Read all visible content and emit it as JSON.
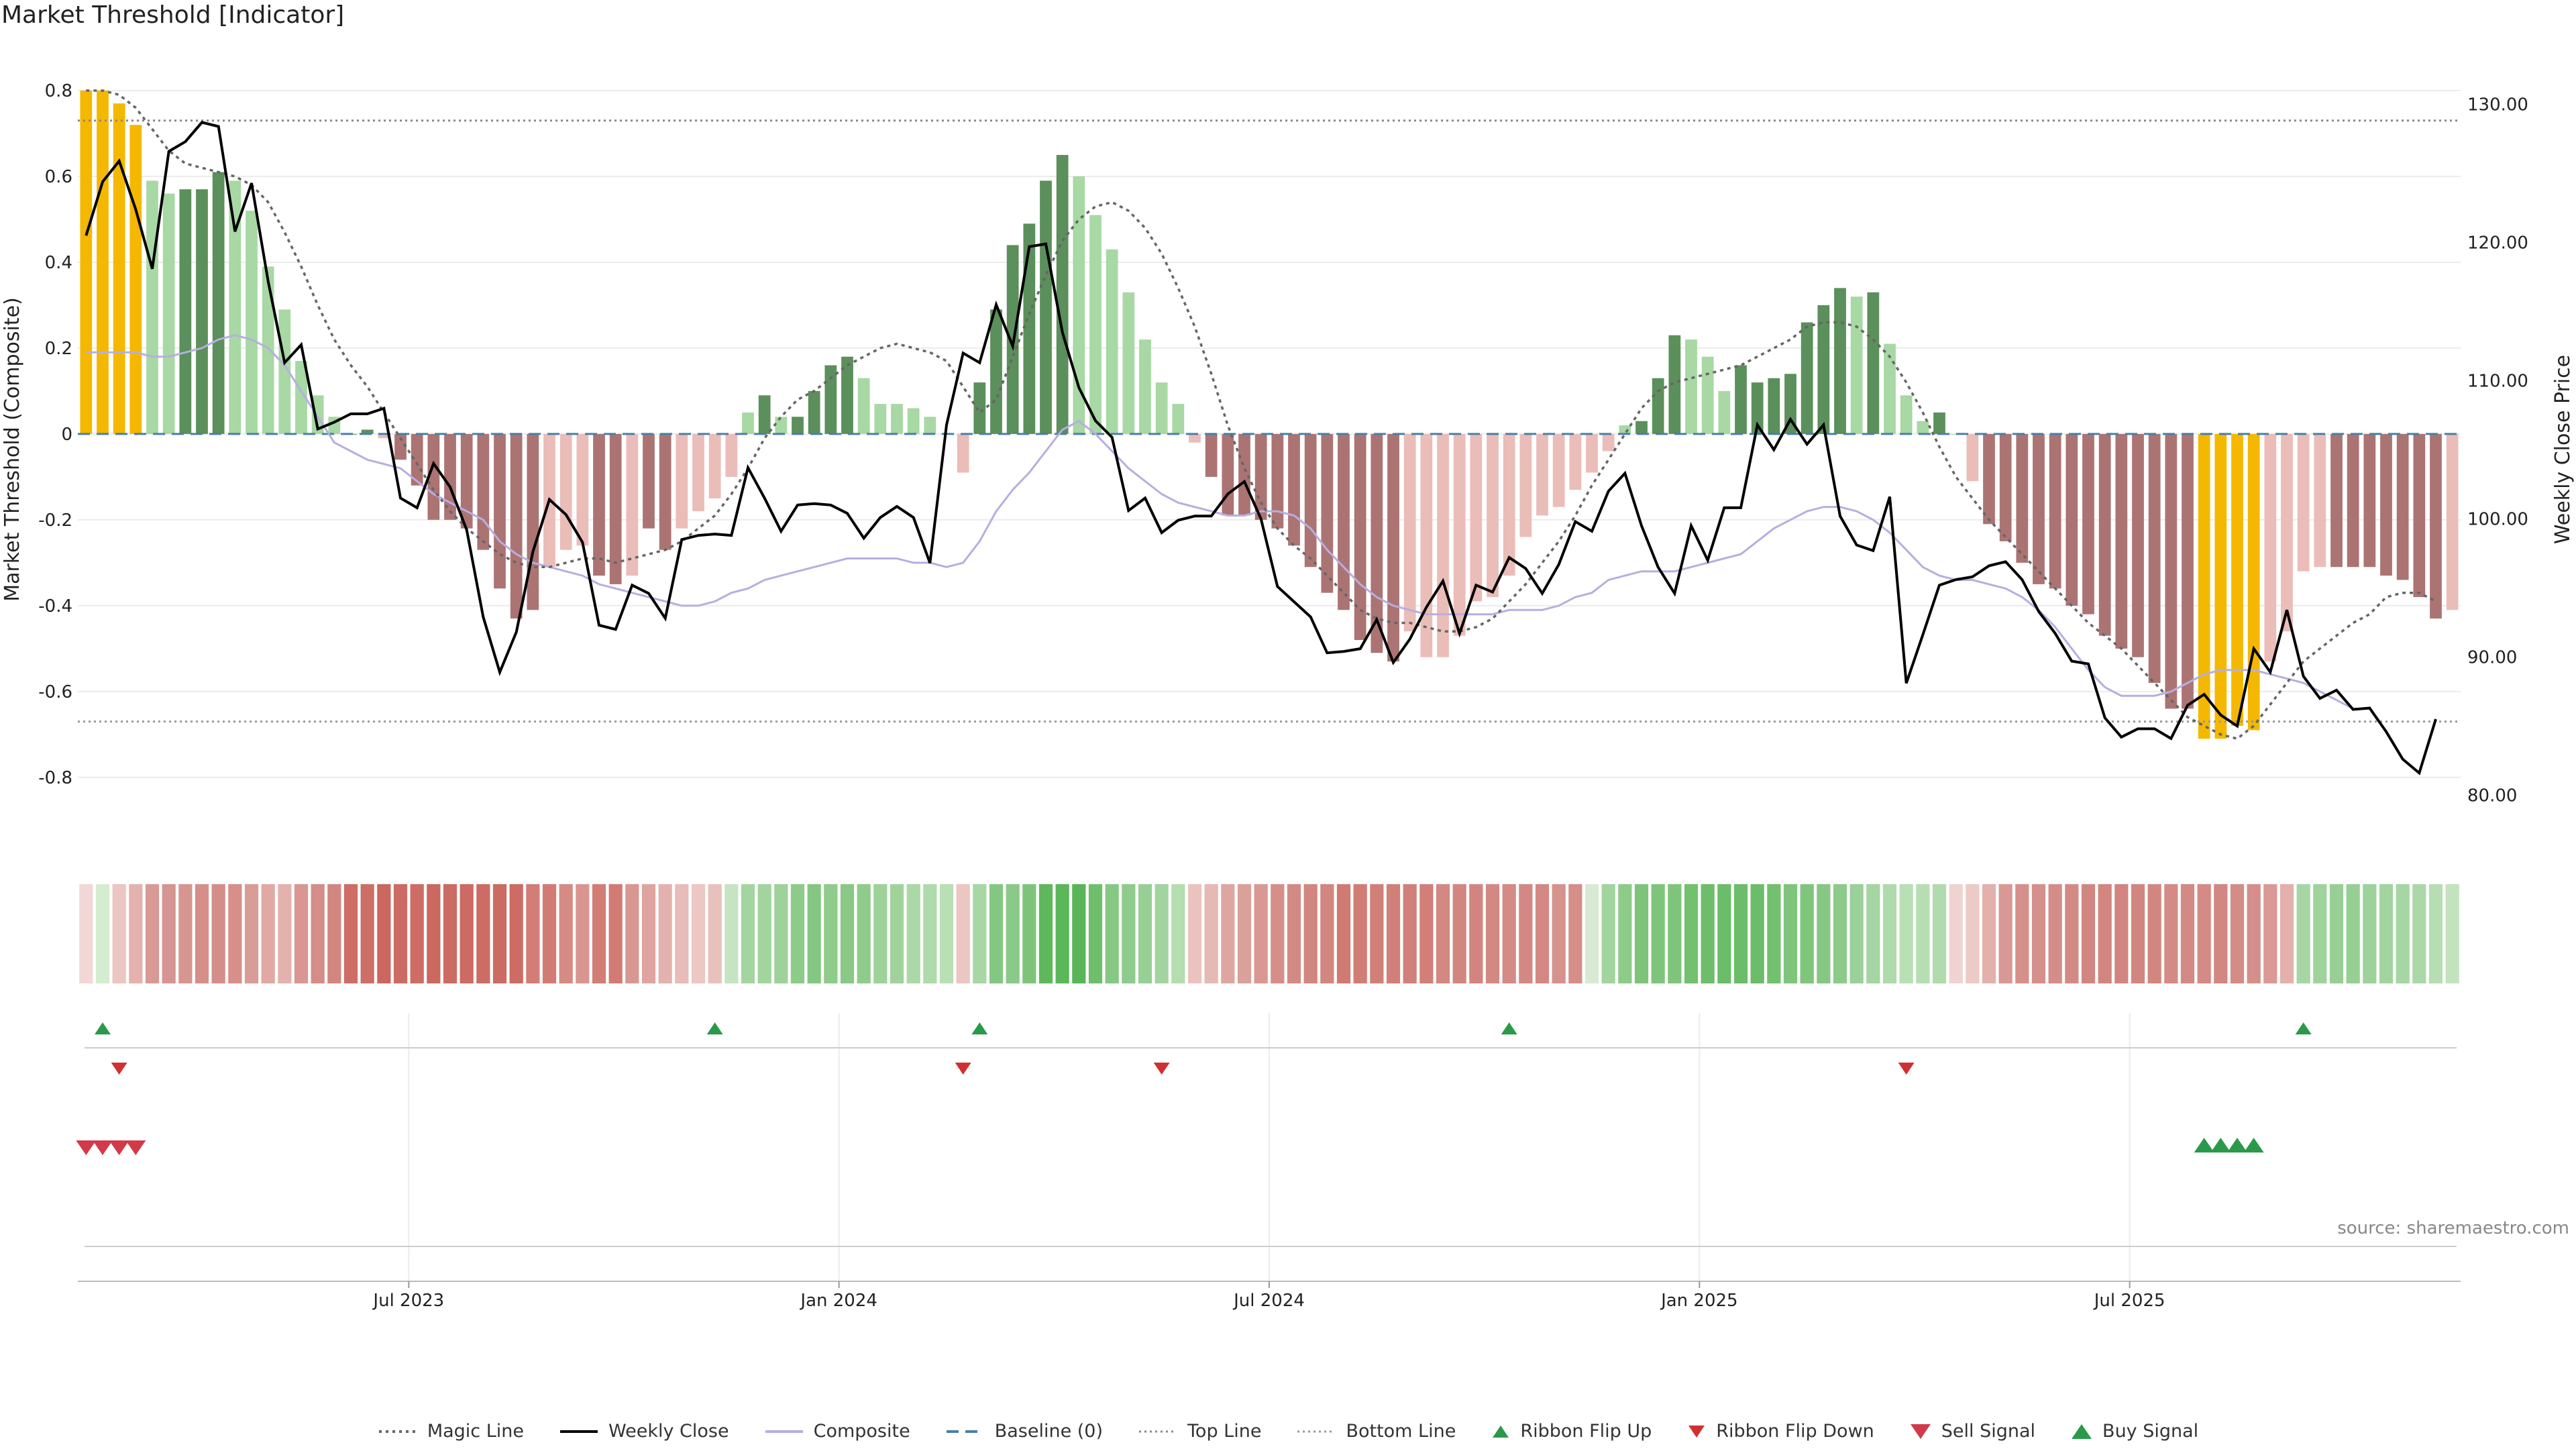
{
  "title": "Market Threshold [Indicator]",
  "source": "source: sharemaestro.com",
  "colors": {
    "gold": "#f5b800",
    "dark_green": "#5b8f5b",
    "light_green": "#a8d8a4",
    "dark_red": "#ab7473",
    "light_red": "#ebbdb8",
    "close": "#000000",
    "composite": "#b7aee0",
    "magic": "#666666",
    "baseline": "#4a7fa8",
    "ribbon_up": "#2a9a4a",
    "ribbon_down": "#d23030",
    "sell": "#d23a4a",
    "buy": "#2a9a4a"
  },
  "chart_data": {
    "type": "bar",
    "title": "Market Threshold [Indicator]",
    "ylabel": "Market Threshold (Composite)",
    "ylabel_right": "Weekly Close Price",
    "ylim": [
      -0.88,
      0.8
    ],
    "ylim_right": [
      78.8,
      131.0
    ],
    "yticks": [
      "0.8",
      "0.6",
      "0.4",
      "0.2",
      "0",
      "-0.2",
      "-0.4",
      "-0.6",
      "-0.8"
    ],
    "ytick_values": [
      0.8,
      0.6,
      0.4,
      0.2,
      0,
      -0.2,
      -0.4,
      -0.6,
      -0.8
    ],
    "yticks_right": [
      "80.00",
      "90.00",
      "100.00",
      "110.00",
      "120.00",
      "130.00"
    ],
    "ytick_right_values": [
      80,
      90,
      100,
      110,
      120,
      130
    ],
    "xticks": [
      "Jul 2023",
      "Jan 2024",
      "Jul 2024",
      "Jan 2025",
      "Jul 2025"
    ],
    "xtick_index": [
      20,
      46,
      72,
      98,
      124
    ],
    "top_line": 0.73,
    "bottom_line": -0.67,
    "composite_values": [
      0.8,
      0.8,
      0.77,
      0.72,
      0.59,
      0.56,
      0.57,
      0.57,
      0.61,
      0.59,
      0.52,
      0.39,
      0.29,
      0.17,
      0.09,
      0.04,
      0.0,
      0.01,
      -0.01,
      -0.06,
      -0.12,
      -0.2,
      -0.2,
      -0.22,
      -0.27,
      -0.36,
      -0.43,
      -0.41,
      -0.31,
      -0.27,
      -0.26,
      -0.33,
      -0.35,
      -0.33,
      -0.22,
      -0.27,
      -0.22,
      -0.18,
      -0.15,
      -0.1,
      0.05,
      0.09,
      0.04,
      0.04,
      0.1,
      0.16,
      0.18,
      0.13,
      0.07,
      0.07,
      0.06,
      0.04,
      0.0,
      -0.09,
      0.12,
      0.29,
      0.44,
      0.49,
      0.59,
      0.65,
      0.6,
      0.51,
      0.43,
      0.33,
      0.22,
      0.12,
      0.07,
      -0.02,
      -0.1,
      -0.19,
      -0.19,
      -0.2,
      -0.22,
      -0.26,
      -0.31,
      -0.37,
      -0.41,
      -0.48,
      -0.51,
      -0.53,
      -0.46,
      -0.52,
      -0.52,
      -0.47,
      -0.39,
      -0.38,
      -0.33,
      -0.24,
      -0.19,
      -0.17,
      -0.13,
      -0.09,
      -0.04,
      0.02,
      0.03,
      0.13,
      0.23,
      0.22,
      0.18,
      0.1,
      0.16,
      0.12,
      0.13,
      0.14,
      0.26,
      0.3,
      0.34,
      0.32,
      0.33,
      0.21,
      0.09,
      0.03,
      0.05,
      0.0,
      -0.11,
      -0.21,
      -0.25,
      -0.3,
      -0.35,
      -0.36,
      -0.4,
      -0.42,
      -0.47,
      -0.5,
      -0.52,
      -0.58,
      -0.64,
      -0.64,
      -0.71,
      -0.71,
      -0.68,
      -0.69,
      -0.53,
      -0.46,
      -0.32,
      -0.31,
      -0.31,
      -0.31,
      -0.31,
      -0.33,
      -0.34,
      -0.38,
      -0.43,
      -0.41
    ],
    "composite_colors": [
      "gold",
      "gold",
      "gold",
      "gold",
      "light_green",
      "light_green",
      "dark_green",
      "dark_green",
      "dark_green",
      "light_green",
      "light_green",
      "light_green",
      "light_green",
      "light_green",
      "light_green",
      "light_green",
      "dark_green",
      "dark_green",
      "light_red",
      "dark_red",
      "dark_red",
      "dark_red",
      "dark_red",
      "dark_red",
      "dark_red",
      "dark_red",
      "dark_red",
      "dark_red",
      "light_red",
      "light_red",
      "light_red",
      "dark_red",
      "dark_red",
      "light_red",
      "dark_red",
      "dark_red",
      "light_red",
      "light_red",
      "light_red",
      "light_red",
      "light_green",
      "dark_green",
      "light_green",
      "dark_green",
      "dark_green",
      "dark_green",
      "dark_green",
      "light_green",
      "light_green",
      "light_green",
      "light_green",
      "light_green",
      "light_red",
      "light_red",
      "dark_green",
      "dark_green",
      "dark_green",
      "dark_green",
      "dark_green",
      "dark_green",
      "light_green",
      "light_green",
      "light_green",
      "light_green",
      "light_green",
      "light_green",
      "light_green",
      "light_red",
      "dark_red",
      "dark_red",
      "dark_red",
      "dark_red",
      "dark_red",
      "dark_red",
      "dark_red",
      "dark_red",
      "dark_red",
      "dark_red",
      "dark_red",
      "dark_red",
      "light_red",
      "light_red",
      "light_red",
      "light_red",
      "light_red",
      "light_red",
      "light_red",
      "light_red",
      "light_red",
      "light_red",
      "light_red",
      "light_red",
      "light_red",
      "light_green",
      "dark_green",
      "dark_green",
      "dark_green",
      "light_green",
      "light_green",
      "light_green",
      "dark_green",
      "dark_green",
      "dark_green",
      "dark_green",
      "dark_green",
      "dark_green",
      "dark_green",
      "light_green",
      "dark_green",
      "light_green",
      "light_green",
      "light_green",
      "dark_green",
      "light_green",
      "light_red",
      "dark_red",
      "dark_red",
      "dark_red",
      "dark_red",
      "dark_red",
      "dark_red",
      "dark_red",
      "dark_red",
      "dark_red",
      "dark_red",
      "dark_red",
      "dark_red",
      "dark_red",
      "gold",
      "gold",
      "gold",
      "gold",
      "light_red",
      "light_red",
      "light_red",
      "light_red",
      "dark_red",
      "dark_red",
      "dark_red",
      "dark_red",
      "dark_red",
      "dark_red",
      "dark_red",
      "light_red"
    ],
    "weekly_close": [
      120.5,
      124.4,
      125.9,
      122.4,
      118.1,
      126.6,
      127.3,
      128.7,
      128.4,
      120.8,
      124.3,
      117.2,
      111.3,
      112.6,
      106.5,
      107.0,
      107.6,
      107.6,
      108.0,
      101.5,
      100.8,
      104.0,
      102.3,
      99.2,
      92.9,
      88.9,
      91.8,
      97.6,
      101.4,
      100.3,
      98.3,
      92.3,
      92.0,
      95.2,
      94.6,
      92.8,
      98.5,
      98.8,
      98.9,
      98.8,
      103.7,
      101.5,
      99.1,
      101.0,
      101.1,
      101.0,
      100.4,
      98.6,
      100.1,
      100.9,
      100.1,
      96.8,
      106.8,
      112.0,
      111.3,
      115.5,
      112.5,
      119.7,
      119.9,
      113.5,
      109.5,
      107.1,
      105.9,
      100.6,
      101.5,
      99.0,
      99.9,
      100.2,
      100.2,
      101.8,
      102.7,
      100.0,
      95.1,
      94.0,
      92.9,
      90.3,
      90.4,
      90.6,
      92.7,
      89.6,
      91.3,
      93.6,
      95.5,
      91.7,
      95.2,
      94.7,
      97.2,
      96.4,
      94.6,
      96.7,
      99.8,
      99.1,
      102.0,
      103.3,
      99.5,
      96.5,
      94.6,
      99.5,
      97.0,
      100.8,
      100.8,
      106.8,
      105.0,
      107.2,
      105.4,
      106.8,
      100.2,
      98.1,
      97.7,
      101.6,
      88.1,
      91.6,
      95.2,
      95.6,
      95.8,
      96.6,
      96.9,
      95.6,
      93.3,
      91.7,
      89.7,
      89.5,
      85.6,
      84.2,
      84.8,
      84.8,
      84.1,
      86.5,
      87.3,
      85.8,
      85.0,
      90.6,
      88.9,
      93.4,
      88.6,
      87.0,
      87.6,
      86.2,
      86.3,
      84.6,
      82.6,
      81.6,
      85.5
    ],
    "magic_line": [
      0.8,
      0.8,
      0.79,
      0.76,
      0.71,
      0.66,
      0.63,
      0.62,
      0.61,
      0.6,
      0.58,
      0.54,
      0.47,
      0.39,
      0.3,
      0.22,
      0.16,
      0.11,
      0.05,
      -0.01,
      -0.07,
      -0.13,
      -0.18,
      -0.22,
      -0.25,
      -0.28,
      -0.3,
      -0.31,
      -0.31,
      -0.3,
      -0.29,
      -0.29,
      -0.3,
      -0.29,
      -0.28,
      -0.27,
      -0.25,
      -0.22,
      -0.19,
      -0.14,
      -0.08,
      -0.01,
      0.04,
      0.08,
      0.1,
      0.13,
      0.16,
      0.18,
      0.2,
      0.21,
      0.2,
      0.19,
      0.17,
      0.11,
      0.05,
      0.08,
      0.18,
      0.28,
      0.37,
      0.45,
      0.5,
      0.53,
      0.54,
      0.52,
      0.48,
      0.42,
      0.34,
      0.25,
      0.14,
      0.02,
      -0.08,
      -0.16,
      -0.22,
      -0.26,
      -0.29,
      -0.33,
      -0.37,
      -0.41,
      -0.43,
      -0.44,
      -0.44,
      -0.45,
      -0.46,
      -0.46,
      -0.45,
      -0.43,
      -0.39,
      -0.35,
      -0.3,
      -0.25,
      -0.19,
      -0.12,
      -0.06,
      0.0,
      0.06,
      0.1,
      0.12,
      0.13,
      0.14,
      0.15,
      0.16,
      0.18,
      0.2,
      0.22,
      0.25,
      0.26,
      0.26,
      0.25,
      0.22,
      0.18,
      0.12,
      0.05,
      -0.03,
      -0.1,
      -0.15,
      -0.2,
      -0.24,
      -0.28,
      -0.32,
      -0.36,
      -0.4,
      -0.44,
      -0.47,
      -0.5,
      -0.54,
      -0.58,
      -0.62,
      -0.66,
      -0.68,
      -0.7,
      -0.71,
      -0.68,
      -0.63,
      -0.58,
      -0.53,
      -0.5,
      -0.47,
      -0.44,
      -0.42,
      -0.38,
      -0.37,
      -0.37,
      -0.39
    ],
    "composite_line": [
      0.19,
      0.19,
      0.19,
      0.19,
      0.18,
      0.18,
      0.19,
      0.2,
      0.22,
      0.23,
      0.22,
      0.2,
      0.16,
      0.1,
      0.04,
      -0.02,
      -0.04,
      -0.06,
      -0.07,
      -0.08,
      -0.11,
      -0.14,
      -0.16,
      -0.18,
      -0.2,
      -0.25,
      -0.28,
      -0.3,
      -0.31,
      -0.32,
      -0.33,
      -0.35,
      -0.36,
      -0.37,
      -0.38,
      -0.39,
      -0.4,
      -0.4,
      -0.39,
      -0.37,
      -0.36,
      -0.34,
      -0.33,
      -0.32,
      -0.31,
      -0.3,
      -0.29,
      -0.29,
      -0.29,
      -0.29,
      -0.3,
      -0.3,
      -0.31,
      -0.3,
      -0.25,
      -0.18,
      -0.13,
      -0.09,
      -0.04,
      0.01,
      0.03,
      0.0,
      -0.04,
      -0.08,
      -0.11,
      -0.14,
      -0.16,
      -0.17,
      -0.18,
      -0.19,
      -0.19,
      -0.18,
      -0.18,
      -0.19,
      -0.22,
      -0.27,
      -0.31,
      -0.35,
      -0.38,
      -0.4,
      -0.41,
      -0.42,
      -0.42,
      -0.42,
      -0.42,
      -0.42,
      -0.41,
      -0.41,
      -0.41,
      -0.4,
      -0.38,
      -0.37,
      -0.34,
      -0.33,
      -0.32,
      -0.32,
      -0.32,
      -0.31,
      -0.3,
      -0.29,
      -0.28,
      -0.25,
      -0.22,
      -0.2,
      -0.18,
      -0.17,
      -0.17,
      -0.18,
      -0.2,
      -0.23,
      -0.27,
      -0.31,
      -0.33,
      -0.34,
      -0.34,
      -0.35,
      -0.36,
      -0.38,
      -0.41,
      -0.45,
      -0.5,
      -0.55,
      -0.59,
      -0.61,
      -0.61,
      -0.61,
      -0.6,
      -0.58,
      -0.56,
      -0.55,
      -0.55,
      -0.55,
      -0.56,
      -0.57,
      -0.58,
      -0.6,
      -0.62,
      -0.64,
      -0.64
    ],
    "ribbon_colors": [
      "#f1d7d5",
      "#d4eccf",
      "#ecc6c2",
      "#e4b2ad",
      "#d99994",
      "#d59592",
      "#d89590",
      "#d58f89",
      "#d48e8a",
      "#d88e89",
      "#d99c97",
      "#e1a9a4",
      "#e4b2ae",
      "#d99692",
      "#d48d89",
      "#d28680",
      "#cd6d65",
      "#cd6f66",
      "#cb675f",
      "#cc6b63",
      "#cd6d66",
      "#cb685f",
      "#cc6b63",
      "#cc6a63",
      "#cc6c64",
      "#cc6b63",
      "#cc6c64",
      "#d27d76",
      "#d27b74",
      "#d68b84",
      "#d99690",
      "#d27e77",
      "#d17b74",
      "#d99792",
      "#dea49f",
      "#e4b2ae",
      "#e8bcb8",
      "#ecc7c3",
      "#e9c1bc",
      "#c6e4c2",
      "#a4d5a0",
      "#a2d49e",
      "#9ed29a",
      "#8dcb89",
      "#84c782",
      "#8fcb8b",
      "#89c985",
      "#8fcb8b",
      "#9dd299",
      "#a0d39c",
      "#aad8a6",
      "#afdaab",
      "#b9dfb5",
      "#ebc6c2",
      "#a8d7a5",
      "#84c782",
      "#8ac987",
      "#7dc47a",
      "#60b85d",
      "#5cb65a",
      "#5ab559",
      "#6fbe6c",
      "#86c883",
      "#8fcb8c",
      "#97cf94",
      "#a2d49f",
      "#b4ddb0",
      "#eac3bf",
      "#e6b9b4",
      "#dea6a1",
      "#daa09a",
      "#d99893",
      "#d68e89",
      "#d48a84",
      "#d28680",
      "#d28680",
      "#cf7a72",
      "#d07d76",
      "#d18079",
      "#d08079",
      "#d0807a",
      "#d27f79",
      "#d38882",
      "#d28680",
      "#d28580",
      "#d38983",
      "#d48a85",
      "#d38883",
      "#d38883",
      "#d6928d",
      "#d58e88",
      "#d8e9d4",
      "#a2d49e",
      "#8dcb89",
      "#7dc47a",
      "#7ec57b",
      "#7ec47b",
      "#73c06f",
      "#6dbd6a",
      "#6cbd69",
      "#6cbd69",
      "#6cbd69",
      "#73c06f",
      "#7ec57b",
      "#7fc57c",
      "#86c783",
      "#8dcb8a",
      "#9ad09a",
      "#a5d5a2",
      "#afdaab",
      "#b9dfb5",
      "#b7deb3",
      "#b1dbad",
      "#efd3d0",
      "#eccac6",
      "#e3b0ab",
      "#d99894",
      "#d6908a",
      "#d5908b",
      "#d48d88",
      "#d48a84",
      "#d28681",
      "#d3857f",
      "#d28580",
      "#d28680",
      "#d28680",
      "#d48b85",
      "#d38984",
      "#d48b86",
      "#d28782",
      "#d48c87",
      "#d48f8a",
      "#da9994",
      "#e3b0ab",
      "#a7d6a4",
      "#a0d39c",
      "#97cf94",
      "#96cf93",
      "#9ed29b",
      "#a1d49e",
      "#a6d6a3",
      "#abd8a8",
      "#b7ddb3",
      "#c3e3bf"
    ],
    "ribbon_flip_up": [
      1,
      38,
      54,
      86,
      134
    ],
    "ribbon_flip_down": [
      2,
      53,
      65,
      110
    ],
    "sell_signal": [
      0,
      1,
      2,
      3
    ],
    "buy_signal": [
      128,
      129,
      130,
      131
    ]
  },
  "legend": {
    "magic": "Magic Line",
    "close": "Weekly Close",
    "composite": "Composite",
    "baseline": "Baseline (0)",
    "top": "Top Line",
    "bottom": "Bottom Line",
    "flip_up": "Ribbon Flip Up",
    "flip_down": "Ribbon Flip Down",
    "sell": "Sell Signal",
    "buy": "Buy Signal"
  }
}
